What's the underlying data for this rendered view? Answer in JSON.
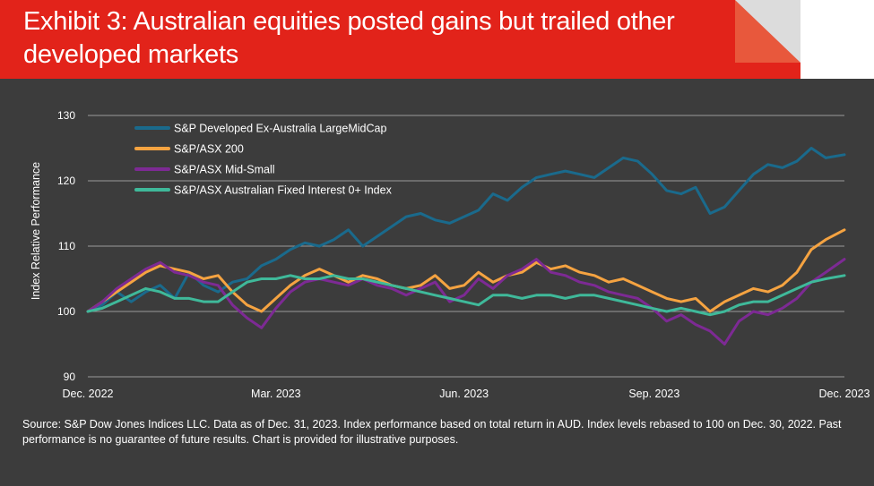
{
  "header": {
    "title": "Exhibit 3: Australian equities posted gains but trailed other developed markets"
  },
  "footnote": "Source: S&P Dow Jones Indices LLC.  Data as of Dec. 31, 2023.  Index performance based on total return in AUD.  Index levels rebased to 100 on Dec. 30, 2022.  Past performance is no guarantee of future results.  Chart is provided for illustrative purposes.",
  "colors": {
    "header_red": "#e2231a",
    "background": "#3c3c3c",
    "corner_orange": "#e8583c"
  },
  "chart_data": {
    "type": "line",
    "ylabel": "Index Relative Performance",
    "xlabel": "",
    "ylim": [
      90,
      130
    ],
    "yticks": [
      90,
      100,
      110,
      120,
      130
    ],
    "xlim": [
      "2022-12-30",
      "2023-12-31"
    ],
    "xticks": [
      {
        "date": "2022-12-30",
        "label": "Dec. 2022"
      },
      {
        "date": "2023-03-31",
        "label": "Mar. 2023"
      },
      {
        "date": "2023-06-30",
        "label": "Jun. 2023"
      },
      {
        "date": "2023-09-30",
        "label": "Sep. 2023"
      },
      {
        "date": "2023-12-31",
        "label": "Dec. 2023"
      }
    ],
    "grid": true,
    "legend_position": "top-left",
    "series": [
      {
        "name": "S&P Developed Ex-Australia LargeMidCap",
        "color": "#1a6a8c",
        "points": [
          [
            "2022-12-30",
            100
          ],
          [
            "2023-01-06",
            101
          ],
          [
            "2023-01-13",
            103
          ],
          [
            "2023-01-20",
            101.5
          ],
          [
            "2023-01-27",
            103
          ],
          [
            "2023-02-03",
            104
          ],
          [
            "2023-02-10",
            102
          ],
          [
            "2023-02-17",
            106
          ],
          [
            "2023-02-24",
            104
          ],
          [
            "2023-03-03",
            103
          ],
          [
            "2023-03-10",
            104.5
          ],
          [
            "2023-03-17",
            105
          ],
          [
            "2023-03-24",
            107
          ],
          [
            "2023-03-31",
            108
          ],
          [
            "2023-04-07",
            109.5
          ],
          [
            "2023-04-14",
            110.5
          ],
          [
            "2023-04-21",
            110
          ],
          [
            "2023-04-28",
            111
          ],
          [
            "2023-05-05",
            112.5
          ],
          [
            "2023-05-12",
            110
          ],
          [
            "2023-05-19",
            111.5
          ],
          [
            "2023-05-26",
            113
          ],
          [
            "2023-06-02",
            114.5
          ],
          [
            "2023-06-09",
            115
          ],
          [
            "2023-06-16",
            114
          ],
          [
            "2023-06-23",
            113.5
          ],
          [
            "2023-06-30",
            114.5
          ],
          [
            "2023-07-07",
            115.5
          ],
          [
            "2023-07-14",
            118
          ],
          [
            "2023-07-21",
            117
          ],
          [
            "2023-07-28",
            119
          ],
          [
            "2023-08-04",
            120.5
          ],
          [
            "2023-08-11",
            121
          ],
          [
            "2023-08-18",
            121.5
          ],
          [
            "2023-08-25",
            121
          ],
          [
            "2023-09-01",
            120.5
          ],
          [
            "2023-09-08",
            122
          ],
          [
            "2023-09-15",
            123.5
          ],
          [
            "2023-09-22",
            123
          ],
          [
            "2023-09-29",
            121
          ],
          [
            "2023-10-06",
            118.5
          ],
          [
            "2023-10-13",
            118
          ],
          [
            "2023-10-20",
            119
          ],
          [
            "2023-10-27",
            115
          ],
          [
            "2023-11-03",
            116
          ],
          [
            "2023-11-10",
            118.5
          ],
          [
            "2023-11-17",
            121
          ],
          [
            "2023-11-24",
            122.5
          ],
          [
            "2023-12-01",
            122
          ],
          [
            "2023-12-08",
            123
          ],
          [
            "2023-12-15",
            125
          ],
          [
            "2023-12-22",
            123.5
          ],
          [
            "2023-12-31",
            124
          ]
        ]
      },
      {
        "name": "S&P/ASX 200",
        "color": "#f5a341",
        "points": [
          [
            "2022-12-30",
            100
          ],
          [
            "2023-01-06",
            101.5
          ],
          [
            "2023-01-13",
            103
          ],
          [
            "2023-01-20",
            104.5
          ],
          [
            "2023-01-27",
            106
          ],
          [
            "2023-02-03",
            107
          ],
          [
            "2023-02-10",
            106.5
          ],
          [
            "2023-02-17",
            106
          ],
          [
            "2023-02-24",
            105
          ],
          [
            "2023-03-03",
            105.5
          ],
          [
            "2023-03-10",
            103
          ],
          [
            "2023-03-17",
            101
          ],
          [
            "2023-03-24",
            100
          ],
          [
            "2023-03-31",
            102
          ],
          [
            "2023-04-07",
            104
          ],
          [
            "2023-04-14",
            105.5
          ],
          [
            "2023-04-21",
            106.5
          ],
          [
            "2023-04-28",
            105.5
          ],
          [
            "2023-05-05",
            104.5
          ],
          [
            "2023-05-12",
            105.5
          ],
          [
            "2023-05-19",
            105
          ],
          [
            "2023-05-26",
            104
          ],
          [
            "2023-06-02",
            103.5
          ],
          [
            "2023-06-09",
            104
          ],
          [
            "2023-06-16",
            105.5
          ],
          [
            "2023-06-23",
            103.5
          ],
          [
            "2023-06-30",
            104
          ],
          [
            "2023-07-07",
            106
          ],
          [
            "2023-07-14",
            104.5
          ],
          [
            "2023-07-21",
            105.5
          ],
          [
            "2023-07-28",
            106
          ],
          [
            "2023-08-04",
            107.5
          ],
          [
            "2023-08-11",
            106.5
          ],
          [
            "2023-08-18",
            107
          ],
          [
            "2023-08-25",
            106
          ],
          [
            "2023-09-01",
            105.5
          ],
          [
            "2023-09-08",
            104.5
          ],
          [
            "2023-09-15",
            105
          ],
          [
            "2023-09-22",
            104
          ],
          [
            "2023-09-29",
            103
          ],
          [
            "2023-10-06",
            102
          ],
          [
            "2023-10-13",
            101.5
          ],
          [
            "2023-10-20",
            102
          ],
          [
            "2023-10-27",
            100
          ],
          [
            "2023-11-03",
            101.5
          ],
          [
            "2023-11-10",
            102.5
          ],
          [
            "2023-11-17",
            103.5
          ],
          [
            "2023-11-24",
            103
          ],
          [
            "2023-12-01",
            104
          ],
          [
            "2023-12-08",
            106
          ],
          [
            "2023-12-15",
            109.5
          ],
          [
            "2023-12-22",
            111
          ],
          [
            "2023-12-31",
            112.5
          ]
        ]
      },
      {
        "name": "S&P/ASX Mid-Small",
        "color": "#7d2a94",
        "points": [
          [
            "2022-12-30",
            100
          ],
          [
            "2023-01-06",
            101.5
          ],
          [
            "2023-01-13",
            103.5
          ],
          [
            "2023-01-20",
            105
          ],
          [
            "2023-01-27",
            106.5
          ],
          [
            "2023-02-03",
            107.5
          ],
          [
            "2023-02-10",
            106
          ],
          [
            "2023-02-17",
            105.5
          ],
          [
            "2023-02-24",
            104.5
          ],
          [
            "2023-03-03",
            104
          ],
          [
            "2023-03-10",
            101
          ],
          [
            "2023-03-17",
            99
          ],
          [
            "2023-03-24",
            97.5
          ],
          [
            "2023-03-31",
            100.5
          ],
          [
            "2023-04-07",
            103
          ],
          [
            "2023-04-14",
            104.5
          ],
          [
            "2023-04-21",
            105
          ],
          [
            "2023-04-28",
            104.5
          ],
          [
            "2023-05-05",
            104
          ],
          [
            "2023-05-12",
            105
          ],
          [
            "2023-05-19",
            104
          ],
          [
            "2023-05-26",
            103.5
          ],
          [
            "2023-06-02",
            102.5
          ],
          [
            "2023-06-09",
            103.5
          ],
          [
            "2023-06-16",
            104.5
          ],
          [
            "2023-06-23",
            101.5
          ],
          [
            "2023-06-30",
            102.5
          ],
          [
            "2023-07-07",
            105
          ],
          [
            "2023-07-14",
            103.5
          ],
          [
            "2023-07-21",
            105.5
          ],
          [
            "2023-07-28",
            106.5
          ],
          [
            "2023-08-04",
            108
          ],
          [
            "2023-08-11",
            106
          ],
          [
            "2023-08-18",
            105.5
          ],
          [
            "2023-08-25",
            104.5
          ],
          [
            "2023-09-01",
            104
          ],
          [
            "2023-09-08",
            103
          ],
          [
            "2023-09-15",
            102.5
          ],
          [
            "2023-09-22",
            102
          ],
          [
            "2023-09-29",
            100.5
          ],
          [
            "2023-10-06",
            98.5
          ],
          [
            "2023-10-13",
            99.5
          ],
          [
            "2023-10-20",
            98
          ],
          [
            "2023-10-27",
            97
          ],
          [
            "2023-11-03",
            95
          ],
          [
            "2023-11-10",
            98.5
          ],
          [
            "2023-11-17",
            100
          ],
          [
            "2023-11-24",
            99.5
          ],
          [
            "2023-12-01",
            100.5
          ],
          [
            "2023-12-08",
            102
          ],
          [
            "2023-12-15",
            104.5
          ],
          [
            "2023-12-22",
            106
          ],
          [
            "2023-12-31",
            108
          ]
        ]
      },
      {
        "name": "S&P/ASX Australian Fixed Interest 0+ Index",
        "color": "#3fb99a",
        "points": [
          [
            "2022-12-30",
            100
          ],
          [
            "2023-01-06",
            100.5
          ],
          [
            "2023-01-13",
            101.5
          ],
          [
            "2023-01-20",
            102.5
          ],
          [
            "2023-01-27",
            103.5
          ],
          [
            "2023-02-03",
            103
          ],
          [
            "2023-02-10",
            102
          ],
          [
            "2023-02-17",
            102
          ],
          [
            "2023-02-24",
            101.5
          ],
          [
            "2023-03-03",
            101.5
          ],
          [
            "2023-03-10",
            103
          ],
          [
            "2023-03-17",
            104.5
          ],
          [
            "2023-03-24",
            105
          ],
          [
            "2023-03-31",
            105
          ],
          [
            "2023-04-07",
            105.5
          ],
          [
            "2023-04-14",
            105
          ],
          [
            "2023-04-21",
            105
          ],
          [
            "2023-04-28",
            105.5
          ],
          [
            "2023-05-05",
            105
          ],
          [
            "2023-05-12",
            105
          ],
          [
            "2023-05-19",
            104.5
          ],
          [
            "2023-05-26",
            104
          ],
          [
            "2023-06-02",
            103.5
          ],
          [
            "2023-06-09",
            103
          ],
          [
            "2023-06-16",
            102.5
          ],
          [
            "2023-06-23",
            102
          ],
          [
            "2023-06-30",
            101.5
          ],
          [
            "2023-07-07",
            101
          ],
          [
            "2023-07-14",
            102.5
          ],
          [
            "2023-07-21",
            102.5
          ],
          [
            "2023-07-28",
            102
          ],
          [
            "2023-08-04",
            102.5
          ],
          [
            "2023-08-11",
            102.5
          ],
          [
            "2023-08-18",
            102
          ],
          [
            "2023-08-25",
            102.5
          ],
          [
            "2023-09-01",
            102.5
          ],
          [
            "2023-09-08",
            102
          ],
          [
            "2023-09-15",
            101.5
          ],
          [
            "2023-09-22",
            101
          ],
          [
            "2023-09-29",
            100.5
          ],
          [
            "2023-10-06",
            100
          ],
          [
            "2023-10-13",
            100.5
          ],
          [
            "2023-10-20",
            100
          ],
          [
            "2023-10-27",
            99.5
          ],
          [
            "2023-11-03",
            100
          ],
          [
            "2023-11-10",
            101
          ],
          [
            "2023-11-17",
            101.5
          ],
          [
            "2023-11-24",
            101.5
          ],
          [
            "2023-12-01",
            102.5
          ],
          [
            "2023-12-08",
            103.5
          ],
          [
            "2023-12-15",
            104.5
          ],
          [
            "2023-12-22",
            105
          ],
          [
            "2023-12-31",
            105.5
          ]
        ]
      }
    ]
  }
}
